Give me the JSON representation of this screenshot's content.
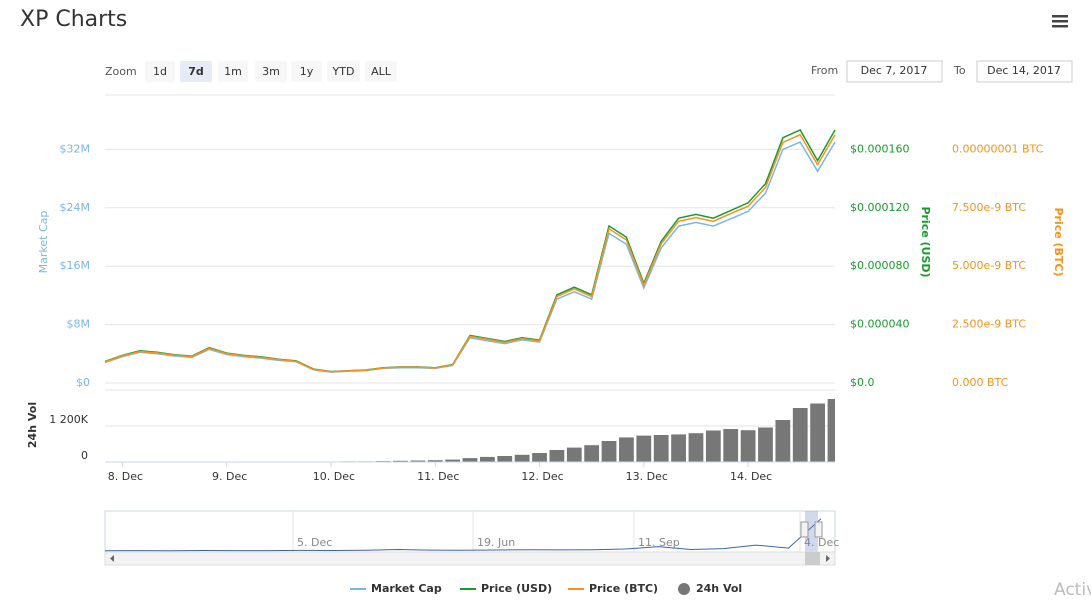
{
  "title": "XP Charts",
  "controls": {
    "zoom_label": "Zoom",
    "zoom_buttons": [
      "1d",
      "7d",
      "1m",
      "3m",
      "1y",
      "YTD",
      "ALL"
    ],
    "selected": 1,
    "from_label": "From",
    "from": "Dec 7, 2017",
    "to_label": "To",
    "to": "Dec 14, 2017"
  },
  "chart_data": {
    "type": "line",
    "grid": true,
    "legend": "bottom",
    "x": [
      "2017-12-07T20:00",
      "2017-12-08T00:00",
      "2017-12-08T04:00",
      "2017-12-08T08:00",
      "2017-12-08T12:00",
      "2017-12-08T16:00",
      "2017-12-08T20:00",
      "2017-12-09T00:00",
      "2017-12-09T04:00",
      "2017-12-09T08:00",
      "2017-12-09T12:00",
      "2017-12-09T16:00",
      "2017-12-09T20:00",
      "2017-12-10T00:00",
      "2017-12-10T04:00",
      "2017-12-10T08:00",
      "2017-12-10T12:00",
      "2017-12-10T16:00",
      "2017-12-10T20:00",
      "2017-12-11T00:00",
      "2017-12-11T04:00",
      "2017-12-11T08:00",
      "2017-12-11T12:00",
      "2017-12-11T16:00",
      "2017-12-11T20:00",
      "2017-12-12T00:00",
      "2017-12-12T04:00",
      "2017-12-12T08:00",
      "2017-12-12T12:00",
      "2017-12-12T16:00",
      "2017-12-12T20:00",
      "2017-12-13T00:00",
      "2017-12-13T04:00",
      "2017-12-13T08:00",
      "2017-12-13T12:00",
      "2017-12-13T16:00",
      "2017-12-13T20:00",
      "2017-12-14T00:00",
      "2017-12-14T04:00",
      "2017-12-14T08:00",
      "2017-12-14T12:00",
      "2017-12-14T16:00",
      "2017-12-14T20:00"
    ],
    "xlim": [
      "2017-12-07T20:00",
      "2017-12-14T20:00"
    ],
    "xticks": [
      {
        "value": "2017-12-08T00:00",
        "label": "8. Dec"
      },
      {
        "value": "2017-12-09T00:00",
        "label": "9. Dec"
      },
      {
        "value": "2017-12-10T00:00",
        "label": "10. Dec"
      },
      {
        "value": "2017-12-11T00:00",
        "label": "11. Dec"
      },
      {
        "value": "2017-12-12T00:00",
        "label": "12. Dec"
      },
      {
        "value": "2017-12-13T00:00",
        "label": "13. Dec"
      },
      {
        "value": "2017-12-14T00:00",
        "label": "14. Dec"
      }
    ],
    "y_label": "Market Cap",
    "ylim": [
      0,
      40000000
    ],
    "yticks": [
      {
        "value": 0,
        "label": "$0"
      },
      {
        "value": 8000000,
        "label": "$8M"
      },
      {
        "value": 16000000,
        "label": "$16M"
      },
      {
        "value": 24000000,
        "label": "$24M"
      },
      {
        "value": 32000000,
        "label": "$32M"
      }
    ],
    "y2_label": "Price (USD)",
    "y2lim": [
      0,
      0.0002
    ],
    "y2ticks": [
      {
        "value": 0,
        "label": "$0.0"
      },
      {
        "value": 4e-05,
        "label": "$0.000040"
      },
      {
        "value": 8e-05,
        "label": "$0.000080"
      },
      {
        "value": 0.00012,
        "label": "$0.000120"
      },
      {
        "value": 0.00016,
        "label": "$0.000160"
      }
    ],
    "y3_label": "Price (BTC)",
    "y3lim": [
      0,
      1.25e-08
    ],
    "y3ticks": [
      {
        "value": 0,
        "label": "0.000 BTC"
      },
      {
        "value": 2.5e-09,
        "label": "2.500e-9 BTC"
      },
      {
        "value": 5e-09,
        "label": "5.000e-9 BTC"
      },
      {
        "value": 7.5e-09,
        "label": "7.500e-9 BTC"
      },
      {
        "value": 1e-08,
        "label": "0.00000001 BTC"
      }
    ],
    "series": [
      {
        "name": "Market Cap",
        "color": "#7cb5ec",
        "axis": "y",
        "values": [
          2800000,
          3600000,
          4200000,
          4000000,
          3700000,
          3500000,
          4600000,
          3900000,
          3600000,
          3400000,
          3100000,
          2900000,
          1800000,
          1500000,
          1600000,
          1700000,
          2000000,
          2100000,
          2100000,
          2000000,
          2400000,
          6200000,
          5800000,
          5400000,
          5900000,
          5600000,
          11500000,
          12500000,
          11500000,
          20500000,
          19000000,
          13000000,
          18500000,
          21500000,
          22000000,
          21500000,
          22500000,
          23500000,
          26000000,
          32000000,
          33000000,
          29000000,
          33000000
        ]
      },
      {
        "name": "Price (USD)",
        "color": "#1a9b2f",
        "axis": "y2",
        "values": [
          1.47e-05,
          1.89e-05,
          2.21e-05,
          2.1e-05,
          1.94e-05,
          1.84e-05,
          2.42e-05,
          2.05e-05,
          1.89e-05,
          1.79e-05,
          1.63e-05,
          1.52e-05,
          9.5e-06,
          7.9e-06,
          8.4e-06,
          8.9e-06,
          1.05e-05,
          1.1e-05,
          1.1e-05,
          1.05e-05,
          1.26e-05,
          3.26e-05,
          3.05e-05,
          2.84e-05,
          3.1e-05,
          2.94e-05,
          6.04e-05,
          6.56e-05,
          6.04e-05,
          0.0001076,
          9.98e-05,
          6.83e-05,
          9.71e-05,
          0.0001129,
          0.0001155,
          0.0001129,
          0.0001181,
          0.0001234,
          0.0001365,
          0.000168,
          0.0001733,
          0.0001523,
          0.0001733
        ]
      },
      {
        "name": "Price (BTC)",
        "color": "#f7931a",
        "axis": "y3",
        "values": [
          9e-10,
          1.16e-09,
          1.35e-09,
          1.29e-09,
          1.19e-09,
          1.13e-09,
          1.48e-09,
          1.26e-09,
          1.16e-09,
          1.09e-09,
          1e-09,
          9.3e-10,
          5.8e-10,
          4.8e-10,
          5.2e-10,
          5.5e-10,
          6.4e-10,
          6.8e-10,
          6.8e-10,
          6.4e-10,
          7.7e-10,
          2e-09,
          1.87e-09,
          1.74e-09,
          1.9e-09,
          1.8e-09,
          3.7e-09,
          4.03e-09,
          3.7e-09,
          6.6e-09,
          6.12e-09,
          4.19e-09,
          5.96e-09,
          6.92e-09,
          7.08e-09,
          6.92e-09,
          7.25e-09,
          7.57e-09,
          8.37e-09,
          1.03e-08,
          1.063e-08,
          9.34e-09,
          1.063e-08
        ]
      }
    ],
    "volume": {
      "name": "24h Vol",
      "color": "#777777",
      "ylim": [
        0,
        2400000
      ],
      "yticks": [
        0,
        {
          "value": 1200000,
          "label": "1 200K"
        }
      ],
      "values": [
        0,
        0,
        0,
        0,
        0,
        0,
        0,
        0,
        0,
        0,
        0,
        0,
        10000,
        10000,
        20000,
        20000,
        30000,
        40000,
        50000,
        60000,
        80000,
        130000,
        170000,
        200000,
        240000,
        300000,
        400000,
        480000,
        560000,
        700000,
        820000,
        880000,
        900000,
        920000,
        960000,
        1050000,
        1100000,
        1060000,
        1150000,
        1400000,
        1800000,
        1950000,
        2100000
      ]
    }
  },
  "navigator": {
    "color": "#3a65b5",
    "labels": [
      "5. Dec",
      "19. Jun",
      "11. Sep",
      "4. Dec"
    ],
    "ylim": [
      0,
      40000000
    ],
    "values": [
      300000,
      400000,
      350000,
      500000,
      450000,
      400000,
      600000,
      500000,
      700000,
      1500000,
      900000,
      800000,
      1000000,
      1200000,
      1100000,
      1300000,
      2000000,
      4500000,
      1500000,
      2500000,
      6000000,
      3000000,
      33000000
    ]
  },
  "watermark": "Activ"
}
